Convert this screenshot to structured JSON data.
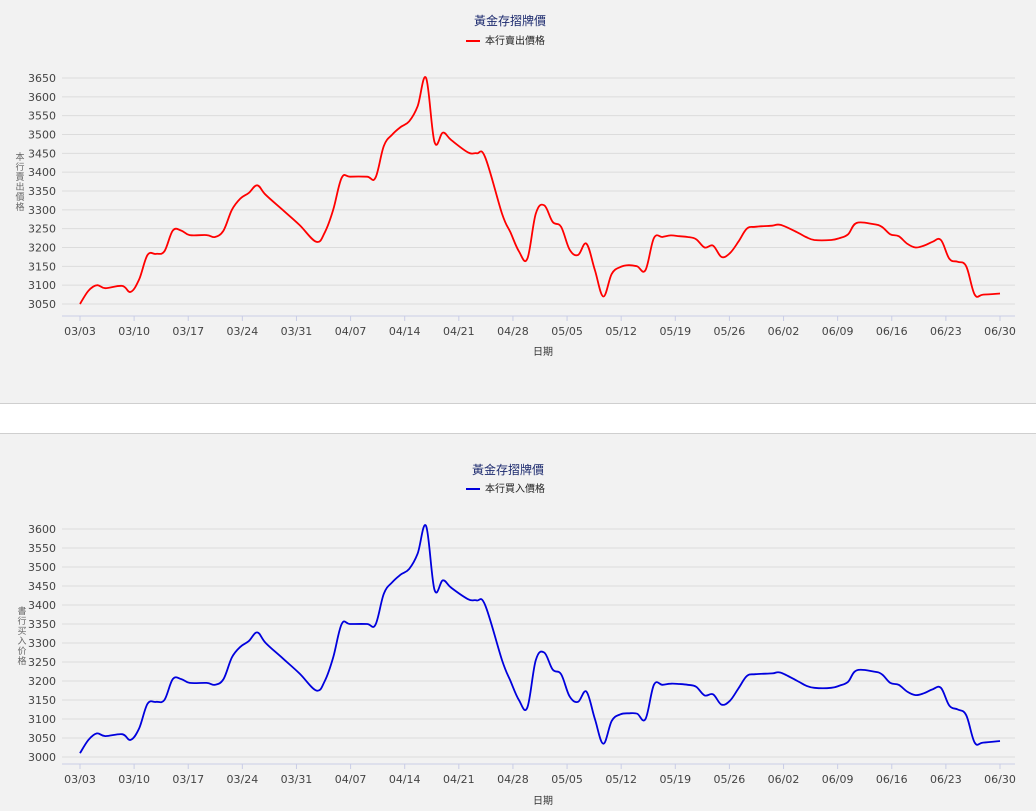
{
  "chart_data": [
    {
      "type": "line",
      "title": "黃金存摺牌價",
      "legend": "本行賣出價格",
      "xlabel": "日期",
      "ylabel": "本行賣出價格",
      "color": "#ff0000",
      "yticks": [
        3050,
        3100,
        3150,
        3200,
        3250,
        3300,
        3350,
        3400,
        3450,
        3500,
        3550,
        3600,
        3650
      ],
      "ylim": [
        3025,
        3665
      ],
      "xticks": [
        "03/03",
        "03/10",
        "03/17",
        "03/24",
        "03/31",
        "04/07",
        "04/14",
        "04/21",
        "04/28",
        "05/05",
        "05/12",
        "05/19",
        "05/26",
        "06/02",
        "06/09",
        "06/16",
        "06/23",
        "06/30"
      ],
      "points": [
        [
          0,
          3050
        ],
        [
          1,
          3085
        ],
        [
          2,
          3100
        ],
        [
          3,
          3092
        ],
        [
          5,
          3098
        ],
        [
          6,
          3082
        ],
        [
          7,
          3115
        ],
        [
          8,
          3180
        ],
        [
          9,
          3183
        ],
        [
          10,
          3190
        ],
        [
          11,
          3245
        ],
        [
          12,
          3245
        ],
        [
          13,
          3233
        ],
        [
          15,
          3233
        ],
        [
          16,
          3228
        ],
        [
          17,
          3245
        ],
        [
          18,
          3300
        ],
        [
          19,
          3330
        ],
        [
          20,
          3345
        ],
        [
          21,
          3365
        ],
        [
          22,
          3340
        ],
        [
          24,
          3300
        ],
        [
          26,
          3260
        ],
        [
          28,
          3215
        ],
        [
          29,
          3240
        ],
        [
          30,
          3300
        ],
        [
          31,
          3385
        ],
        [
          32,
          3388
        ],
        [
          34,
          3388
        ],
        [
          35,
          3385
        ],
        [
          36,
          3470
        ],
        [
          37,
          3500
        ],
        [
          38,
          3520
        ],
        [
          39,
          3535
        ],
        [
          40,
          3575
        ],
        [
          41,
          3650
        ],
        [
          42,
          3480
        ],
        [
          43,
          3505
        ],
        [
          44,
          3485
        ],
        [
          46,
          3452
        ],
        [
          47,
          3450
        ],
        [
          48,
          3440
        ],
        [
          50,
          3290
        ],
        [
          51,
          3240
        ],
        [
          52,
          3190
        ],
        [
          53,
          3170
        ],
        [
          54,
          3290
        ],
        [
          55,
          3312
        ],
        [
          56,
          3268
        ],
        [
          57,
          3255
        ],
        [
          58,
          3195
        ],
        [
          59,
          3180
        ],
        [
          60,
          3210
        ],
        [
          61,
          3140
        ],
        [
          62,
          3070
        ],
        [
          63,
          3130
        ],
        [
          64,
          3148
        ],
        [
          65,
          3153
        ],
        [
          66,
          3150
        ],
        [
          67,
          3140
        ],
        [
          68,
          3225
        ],
        [
          69,
          3228
        ],
        [
          70,
          3232
        ],
        [
          71,
          3230
        ],
        [
          72,
          3228
        ],
        [
          73,
          3222
        ],
        [
          74,
          3200
        ],
        [
          75,
          3205
        ],
        [
          76,
          3175
        ],
        [
          77,
          3185
        ],
        [
          78,
          3215
        ],
        [
          79,
          3250
        ],
        [
          80,
          3255
        ],
        [
          82,
          3258
        ],
        [
          83,
          3260
        ],
        [
          85,
          3240
        ],
        [
          86,
          3228
        ],
        [
          87,
          3220
        ],
        [
          89,
          3220
        ],
        [
          90,
          3225
        ],
        [
          91,
          3235
        ],
        [
          92,
          3265
        ],
        [
          94,
          3262
        ],
        [
          95,
          3255
        ],
        [
          96,
          3235
        ],
        [
          97,
          3230
        ],
        [
          98,
          3210
        ],
        [
          99,
          3200
        ],
        [
          100,
          3205
        ],
        [
          101,
          3215
        ],
        [
          102,
          3220
        ],
        [
          103,
          3170
        ],
        [
          104,
          3162
        ],
        [
          105,
          3150
        ],
        [
          106,
          3075
        ],
        [
          107,
          3075
        ],
        [
          109,
          3078
        ]
      ],
      "x_range": [
        0,
        109
      ]
    },
    {
      "type": "line",
      "title": "黃金存摺牌價",
      "legend": "本行買入價格",
      "xlabel": "日期",
      "ylabel": "書行买入价格",
      "color": "#0000dd",
      "yticks": [
        3000,
        3050,
        3100,
        3150,
        3200,
        3250,
        3300,
        3350,
        3400,
        3450,
        3500,
        3550,
        3600
      ],
      "ylim": [
        2980,
        3620
      ],
      "xticks": [
        "03/03",
        "03/10",
        "03/17",
        "03/24",
        "03/31",
        "04/07",
        "04/14",
        "04/21",
        "04/28",
        "05/05",
        "05/12",
        "05/19",
        "05/26",
        "06/02",
        "06/09",
        "06/16",
        "06/23",
        "06/30"
      ],
      "points": [
        [
          0,
          3010
        ],
        [
          1,
          3045
        ],
        [
          2,
          3062
        ],
        [
          3,
          3055
        ],
        [
          5,
          3060
        ],
        [
          6,
          3045
        ],
        [
          7,
          3075
        ],
        [
          8,
          3140
        ],
        [
          9,
          3145
        ],
        [
          10,
          3150
        ],
        [
          11,
          3205
        ],
        [
          12,
          3205
        ],
        [
          13,
          3195
        ],
        [
          15,
          3195
        ],
        [
          16,
          3190
        ],
        [
          17,
          3205
        ],
        [
          18,
          3262
        ],
        [
          19,
          3290
        ],
        [
          20,
          3305
        ],
        [
          21,
          3328
        ],
        [
          22,
          3300
        ],
        [
          24,
          3260
        ],
        [
          26,
          3220
        ],
        [
          28,
          3175
        ],
        [
          29,
          3200
        ],
        [
          30,
          3262
        ],
        [
          31,
          3350
        ],
        [
          32,
          3350
        ],
        [
          34,
          3350
        ],
        [
          35,
          3348
        ],
        [
          36,
          3430
        ],
        [
          37,
          3460
        ],
        [
          38,
          3480
        ],
        [
          39,
          3495
        ],
        [
          40,
          3535
        ],
        [
          41,
          3608
        ],
        [
          42,
          3440
        ],
        [
          43,
          3465
        ],
        [
          44,
          3445
        ],
        [
          46,
          3415
        ],
        [
          47,
          3412
        ],
        [
          48,
          3400
        ],
        [
          50,
          3255
        ],
        [
          51,
          3200
        ],
        [
          52,
          3150
        ],
        [
          53,
          3130
        ],
        [
          54,
          3255
        ],
        [
          55,
          3275
        ],
        [
          56,
          3230
        ],
        [
          57,
          3218
        ],
        [
          58,
          3160
        ],
        [
          59,
          3145
        ],
        [
          60,
          3172
        ],
        [
          61,
          3100
        ],
        [
          62,
          3035
        ],
        [
          63,
          3095
        ],
        [
          64,
          3112
        ],
        [
          65,
          3115
        ],
        [
          66,
          3114
        ],
        [
          67,
          3100
        ],
        [
          68,
          3190
        ],
        [
          69,
          3190
        ],
        [
          70,
          3193
        ],
        [
          71,
          3192
        ],
        [
          72,
          3190
        ],
        [
          73,
          3185
        ],
        [
          74,
          3162
        ],
        [
          75,
          3165
        ],
        [
          76,
          3138
        ],
        [
          77,
          3148
        ],
        [
          78,
          3180
        ],
        [
          79,
          3213
        ],
        [
          80,
          3218
        ],
        [
          82,
          3220
        ],
        [
          83,
          3222
        ],
        [
          85,
          3200
        ],
        [
          86,
          3188
        ],
        [
          87,
          3182
        ],
        [
          89,
          3182
        ],
        [
          90,
          3188
        ],
        [
          91,
          3198
        ],
        [
          92,
          3228
        ],
        [
          94,
          3225
        ],
        [
          95,
          3218
        ],
        [
          96,
          3195
        ],
        [
          97,
          3190
        ],
        [
          98,
          3172
        ],
        [
          99,
          3163
        ],
        [
          100,
          3168
        ],
        [
          101,
          3178
        ],
        [
          102,
          3182
        ],
        [
          103,
          3135
        ],
        [
          104,
          3125
        ],
        [
          105,
          3110
        ],
        [
          106,
          3038
        ],
        [
          107,
          3038
        ],
        [
          109,
          3042
        ]
      ],
      "x_range": [
        0,
        109
      ]
    }
  ]
}
